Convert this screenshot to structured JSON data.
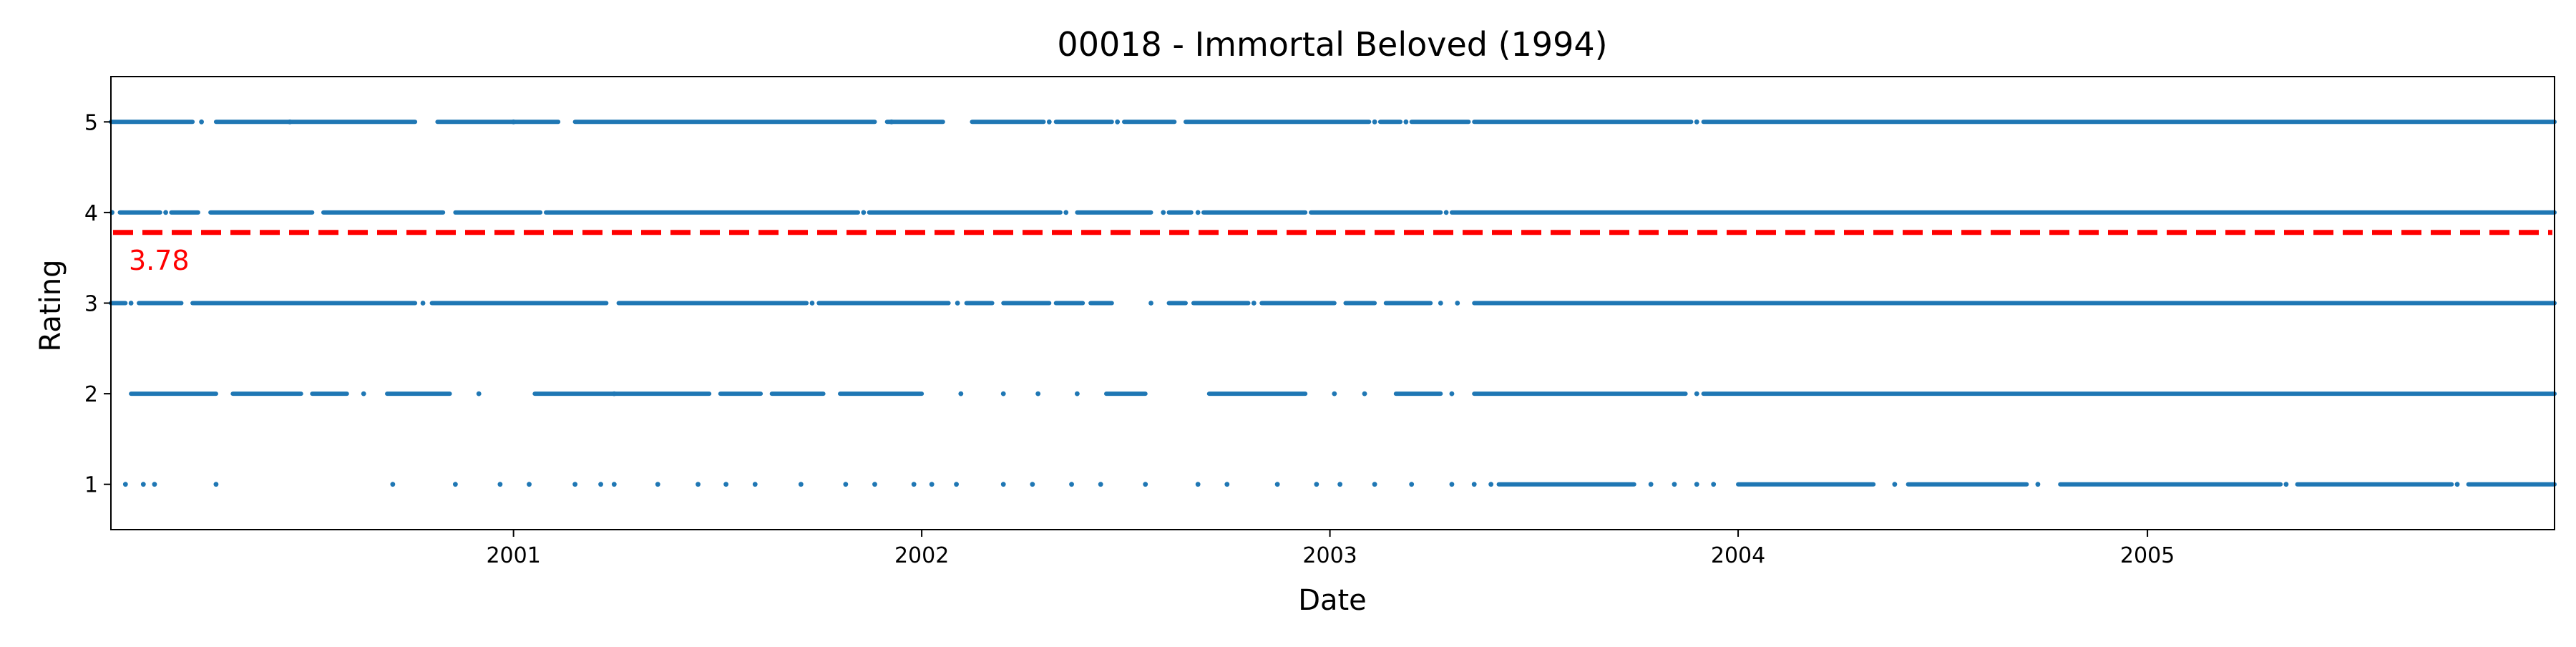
{
  "chart_data": {
    "type": "scatter",
    "title": "00018 - Immortal Beloved (1994)",
    "xlabel": "Date",
    "ylabel": "Rating",
    "xlim": [
      "2000-01-07",
      "2005-12-31"
    ],
    "ylim": [
      0.5,
      5.5
    ],
    "x_ticks": [
      "2001-01-01",
      "2002-01-01",
      "2003-01-01",
      "2004-01-01",
      "2005-01-01"
    ],
    "x_tick_labels": [
      "2001",
      "2002",
      "2003",
      "2004",
      "2005"
    ],
    "y_ticks": [
      1,
      2,
      3,
      4,
      5
    ],
    "y_tick_labels": [
      "1",
      "2",
      "3",
      "4",
      "5"
    ],
    "grid": false,
    "series_color": "#1f77b4",
    "mean_line": {
      "value": 3.78,
      "label": "3.78",
      "color": "#ff0000",
      "style": "dashed"
    },
    "ratings": [
      {
        "rating": 5,
        "segments": [
          [
            "2000-01-07",
            "2000-03-20"
          ],
          [
            "2000-04-10",
            "2000-10-05"
          ],
          [
            "2000-10-25",
            "2001-02-10"
          ],
          [
            "2001-02-25",
            "2001-11-20"
          ],
          [
            "2001-12-01",
            "2002-01-20"
          ],
          [
            "2002-02-15",
            "2002-04-20"
          ],
          [
            "2002-05-01",
            "2002-06-20"
          ],
          [
            "2002-07-01",
            "2002-08-15"
          ],
          [
            "2002-08-25",
            "2003-02-05"
          ],
          [
            "2003-02-15",
            "2003-03-05"
          ],
          [
            "2003-03-15",
            "2003-05-05"
          ],
          [
            "2003-05-10",
            "2003-11-20"
          ],
          [
            "2003-12-01",
            "2005-12-31"
          ]
        ],
        "points": [
          "2000-03-28",
          "2000-06-15",
          "2001-01-01",
          "2001-12-05",
          "2002-04-25",
          "2002-06-25",
          "2003-02-10",
          "2003-03-10",
          "2003-11-25"
        ]
      },
      {
        "rating": 4,
        "segments": [
          [
            "2000-01-15",
            "2000-02-20"
          ],
          [
            "2000-03-01",
            "2000-03-25"
          ],
          [
            "2000-04-05",
            "2000-07-05"
          ],
          [
            "2000-07-15",
            "2000-10-30"
          ],
          [
            "2000-11-10",
            "2001-01-25"
          ],
          [
            "2001-01-30",
            "2001-11-05"
          ],
          [
            "2001-11-15",
            "2002-05-05"
          ],
          [
            "2002-05-20",
            "2002-07-25"
          ],
          [
            "2002-08-10",
            "2002-08-30"
          ],
          [
            "2002-09-10",
            "2002-12-10"
          ],
          [
            "2002-12-15",
            "2003-04-10"
          ],
          [
            "2003-04-20",
            "2005-12-31"
          ]
        ],
        "points": [
          "2000-01-08",
          "2000-02-25",
          "2001-11-10",
          "2002-05-10",
          "2002-08-05",
          "2002-09-05",
          "2003-04-15"
        ]
      },
      {
        "rating": 3,
        "segments": [
          [
            "2000-01-07",
            "2000-01-20"
          ],
          [
            "2000-02-01",
            "2000-03-10"
          ],
          [
            "2000-03-20",
            "2000-10-05"
          ],
          [
            "2000-10-20",
            "2001-03-25"
          ],
          [
            "2001-04-05",
            "2001-09-20"
          ],
          [
            "2001-10-01",
            "2002-01-25"
          ],
          [
            "2002-02-10",
            "2002-03-05"
          ],
          [
            "2002-03-15",
            "2002-04-25"
          ],
          [
            "2002-05-01",
            "2002-05-25"
          ],
          [
            "2002-06-01",
            "2002-06-20"
          ],
          [
            "2002-08-10",
            "2002-08-25"
          ],
          [
            "2002-09-01",
            "2002-10-20"
          ],
          [
            "2002-11-01",
            "2003-01-05"
          ],
          [
            "2003-01-15",
            "2003-02-10"
          ],
          [
            "2003-02-20",
            "2003-04-01"
          ],
          [
            "2003-05-10",
            "2005-12-31"
          ]
        ],
        "points": [
          "2000-01-25",
          "2000-10-12",
          "2001-09-25",
          "2002-02-02",
          "2002-07-25",
          "2002-10-25",
          "2003-04-10",
          "2003-04-25"
        ]
      },
      {
        "rating": 2,
        "segments": [
          [
            "2000-01-25",
            "2000-04-10"
          ],
          [
            "2000-04-25",
            "2000-06-25"
          ],
          [
            "2000-07-05",
            "2000-08-05"
          ],
          [
            "2000-09-10",
            "2000-11-05"
          ],
          [
            "2001-01-20",
            "2001-06-25"
          ],
          [
            "2001-07-05",
            "2001-08-10"
          ],
          [
            "2001-08-20",
            "2001-10-05"
          ],
          [
            "2001-10-20",
            "2002-01-01"
          ],
          [
            "2002-06-15",
            "2002-07-20"
          ],
          [
            "2002-09-15",
            "2002-12-10"
          ],
          [
            "2003-03-01",
            "2003-04-10"
          ],
          [
            "2003-05-10",
            "2003-11-15"
          ],
          [
            "2003-12-01",
            "2005-12-31"
          ]
        ],
        "points": [
          "2000-08-20",
          "2000-12-01",
          "2001-04-01",
          "2002-02-05",
          "2002-03-15",
          "2002-04-15",
          "2002-05-20",
          "2003-01-05",
          "2003-02-01",
          "2003-04-20",
          "2003-11-25"
        ]
      },
      {
        "rating": 1,
        "segments": [
          [
            "2003-06-01",
            "2003-09-30"
          ],
          [
            "2004-01-01",
            "2004-05-01"
          ],
          [
            "2004-06-01",
            "2004-09-15"
          ],
          [
            "2004-10-15",
            "2005-04-30"
          ],
          [
            "2005-05-15",
            "2005-09-30"
          ],
          [
            "2005-10-15",
            "2005-12-31"
          ]
        ],
        "points": [
          "2000-01-20",
          "2000-02-05",
          "2000-02-15",
          "2000-04-10",
          "2000-09-15",
          "2000-11-10",
          "2000-12-20",
          "2001-01-15",
          "2001-02-25",
          "2001-03-20",
          "2001-04-01",
          "2001-05-10",
          "2001-06-15",
          "2001-07-10",
          "2001-08-05",
          "2001-09-15",
          "2001-10-25",
          "2001-11-20",
          "2001-12-25",
          "2002-01-10",
          "2002-02-01",
          "2002-03-15",
          "2002-04-10",
          "2002-05-15",
          "2002-06-10",
          "2002-07-20",
          "2002-09-05",
          "2002-10-01",
          "2002-11-15",
          "2002-12-20",
          "2003-01-10",
          "2003-02-10",
          "2003-03-15",
          "2003-04-20",
          "2003-05-10",
          "2003-05-25",
          "2003-10-15",
          "2003-11-05",
          "2003-11-25",
          "2003-12-10",
          "2004-05-20",
          "2004-09-25",
          "2005-05-05",
          "2005-10-05"
        ]
      }
    ]
  }
}
